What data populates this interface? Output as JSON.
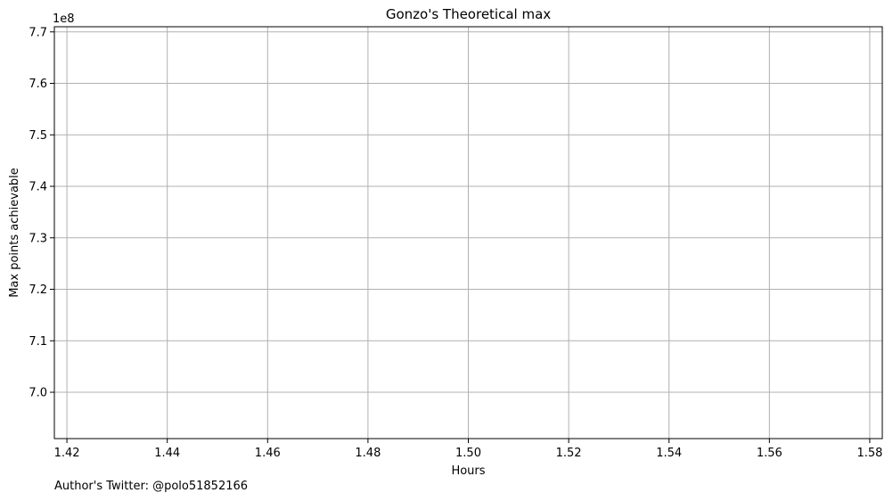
{
  "chart_data": {
    "type": "line",
    "title": "Gonzo's Theoretical max",
    "xlabel": "Hours",
    "ylabel": "Max points achievable",
    "y_offset_label": "1e8",
    "xlim": [
      1.4175,
      1.5825
    ],
    "ylim": [
      6.91,
      7.71
    ],
    "x_ticks": [
      1.42,
      1.44,
      1.46,
      1.48,
      1.5,
      1.52,
      1.54,
      1.56,
      1.58
    ],
    "x_tick_labels": [
      "1.42",
      "1.44",
      "1.46",
      "1.48",
      "1.50",
      "1.52",
      "1.54",
      "1.56",
      "1.58"
    ],
    "y_ticks": [
      7.0,
      7.1,
      7.2,
      7.3,
      7.4,
      7.5,
      7.6,
      7.7
    ],
    "y_tick_labels": [
      "7.0",
      "7.1",
      "7.2",
      "7.3",
      "7.4",
      "7.5",
      "7.6",
      "7.7"
    ],
    "grid": true,
    "grid_color": "#b0b0b0",
    "series": []
  },
  "footnote": "Author's Twitter: @polo51852166"
}
